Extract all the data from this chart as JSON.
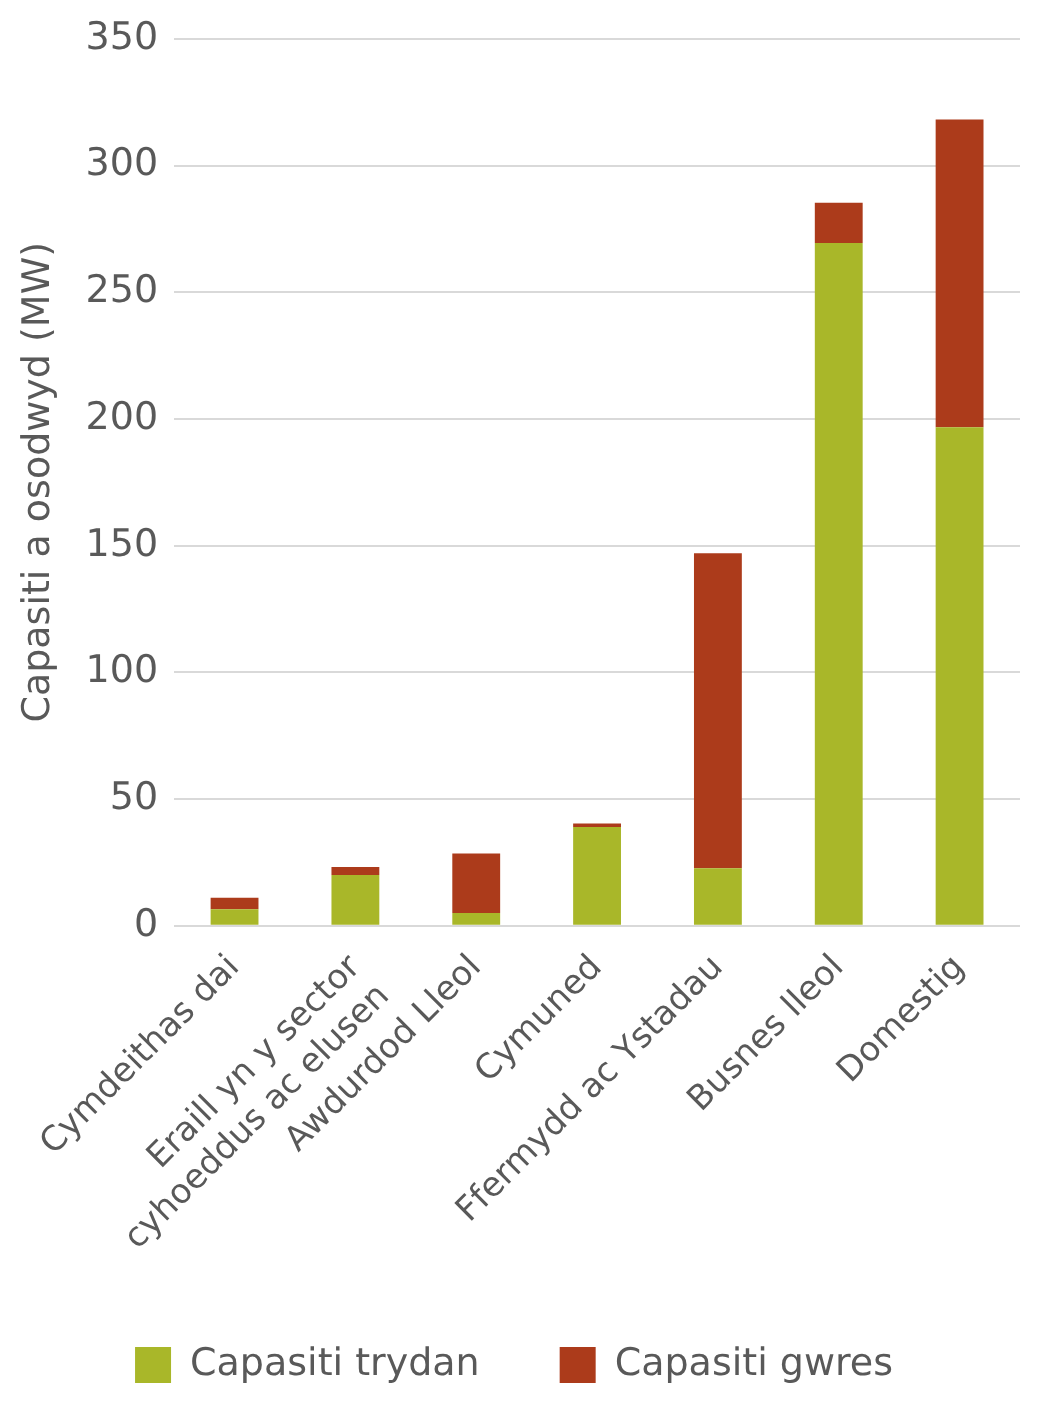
{
  "chart_data": {
    "type": "bar",
    "stacked": true,
    "ylabel": "Capasiti a osodwyd (MW)",
    "categories": [
      "Cymdeithas dai",
      "Eraill yn y sector cyhoeddus ac elusen",
      "Awdurdod Lleol",
      "Cymuned",
      "Ffermydd ac Ystadau",
      "Busnes lleol",
      "Domestig"
    ],
    "series": [
      {
        "name": "Capasiti trydan",
        "color": "#a9b729",
        "values": [
          6.5,
          20,
          5,
          39,
          22.7,
          269.4,
          196.7
        ]
      },
      {
        "name": "Capasiti gwres",
        "color": "#ac3b1b",
        "values": [
          4.5,
          3.2,
          23.5,
          1.3,
          124.3,
          15.9,
          121.5
        ]
      }
    ],
    "ylim": [
      0,
      350
    ],
    "yticks": [
      0,
      50,
      100,
      150,
      200,
      250,
      300,
      350
    ],
    "grid": "y",
    "legend": "bottom"
  }
}
